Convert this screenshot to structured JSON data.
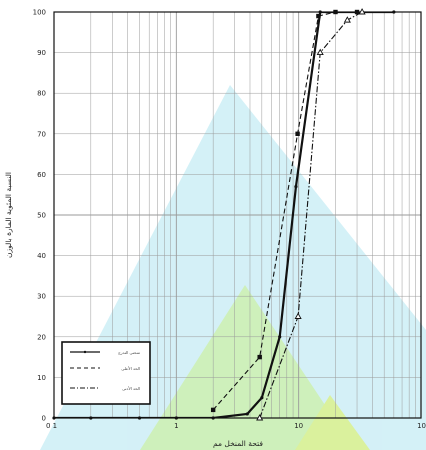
{
  "chart_data": {
    "type": "line",
    "title": "",
    "xlabel": "فتحة المنخل مم",
    "ylabel": "النسبة المئوية المارة بالوزن",
    "x_scale": "log",
    "xlim": [
      0.1,
      100
    ],
    "ylim": [
      0,
      100
    ],
    "grid": true,
    "x_tick_labels": [
      "0 1",
      "1",
      "10",
      "10"
    ],
    "y_ticks": [
      0,
      10,
      20,
      30,
      40,
      50,
      60,
      70,
      80,
      90,
      100
    ],
    "legend": {
      "position": "bottom-left",
      "entries": [
        "منحنى التدرج",
        "الحد الأعلى",
        "الحد الأدنى"
      ]
    },
    "series": [
      {
        "name": "منحنى التدرج",
        "style": "solid",
        "marker": "circle",
        "x": [
          0.1,
          0.2,
          0.5,
          1.0,
          2.0,
          3.8,
          5.0,
          7.0,
          9.5,
          15,
          20,
          30,
          60
        ],
        "y": [
          0,
          0,
          0,
          0,
          0,
          1,
          5,
          20,
          57,
          100,
          100,
          100,
          100
        ]
      },
      {
        "name": "الحد الأعلى",
        "style": "dashed",
        "marker": "square",
        "x": [
          2.0,
          4.8,
          9.8,
          14.5,
          20,
          30
        ],
        "y": [
          2,
          15,
          70,
          99,
          100,
          100
        ]
      },
      {
        "name": "الحد الأدنى",
        "style": "dash-dot",
        "marker": "triangle",
        "x": [
          4.8,
          9.9,
          15,
          25,
          33
        ],
        "y": [
          0,
          25,
          90,
          98,
          100
        ]
      }
    ]
  },
  "style": {
    "line_color": "#111111",
    "grid_color": "#9a9a9a",
    "watermark_colors": [
      "#b8e6f0",
      "#a8e8c8",
      "#c8ec70"
    ]
  }
}
